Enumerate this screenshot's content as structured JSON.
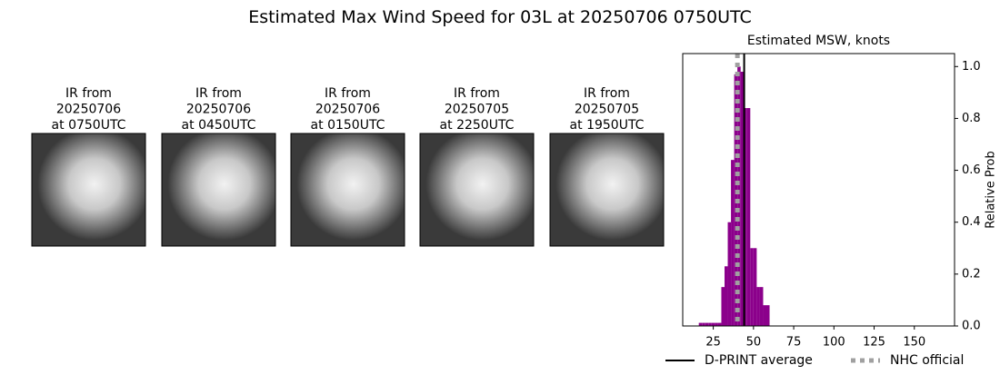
{
  "title": "Estimated Max Wind Speed for 03L at 20250706 0750UTC",
  "panels": [
    {
      "lines": [
        "IR from",
        "20250706",
        "at 0750UTC"
      ]
    },
    {
      "lines": [
        "IR from",
        "20250706",
        "at 0450UTC"
      ]
    },
    {
      "lines": [
        "IR from",
        "20250706",
        "at 0150UTC"
      ]
    },
    {
      "lines": [
        "IR from",
        "20250705",
        "at 2250UTC"
      ]
    },
    {
      "lines": [
        "IR from",
        "20250705",
        "at 1950UTC"
      ]
    }
  ],
  "chart_data": {
    "type": "histogram",
    "title": "Estimated MSW, knots",
    "y_label": "Relative Prob",
    "color": "#8b008b",
    "bins": [
      16,
      18,
      20,
      22,
      24,
      26,
      28,
      30,
      32,
      34,
      36,
      38,
      40,
      42,
      44,
      46,
      48,
      50,
      52,
      54,
      56,
      58,
      60
    ],
    "values": [
      0.012,
      0.012,
      0.012,
      0.012,
      0.012,
      0.012,
      0.012,
      0.15,
      0.23,
      0.4,
      0.64,
      0.97,
      1.0,
      0.98,
      0.84,
      0.84,
      0.3,
      0.3,
      0.15,
      0.15,
      0.08,
      0.08
    ],
    "xlim": [
      6,
      175
    ],
    "ylim": [
      0,
      1.05
    ],
    "xticks": [
      25,
      50,
      75,
      100,
      125,
      150
    ],
    "yticks": [
      {
        "value": 0,
        "label": "0.0"
      },
      0.2,
      0.4,
      0.6,
      0.8,
      {
        "value": 1,
        "label": "1.0"
      }
    ],
    "reference_lines": [
      {
        "name": "D-PRINT average",
        "x": 44.2,
        "color": "#000000",
        "style": "solid"
      },
      {
        "name": "NHC official",
        "x": 40,
        "color": "#a0a0a0",
        "style": "dotted"
      }
    ]
  }
}
